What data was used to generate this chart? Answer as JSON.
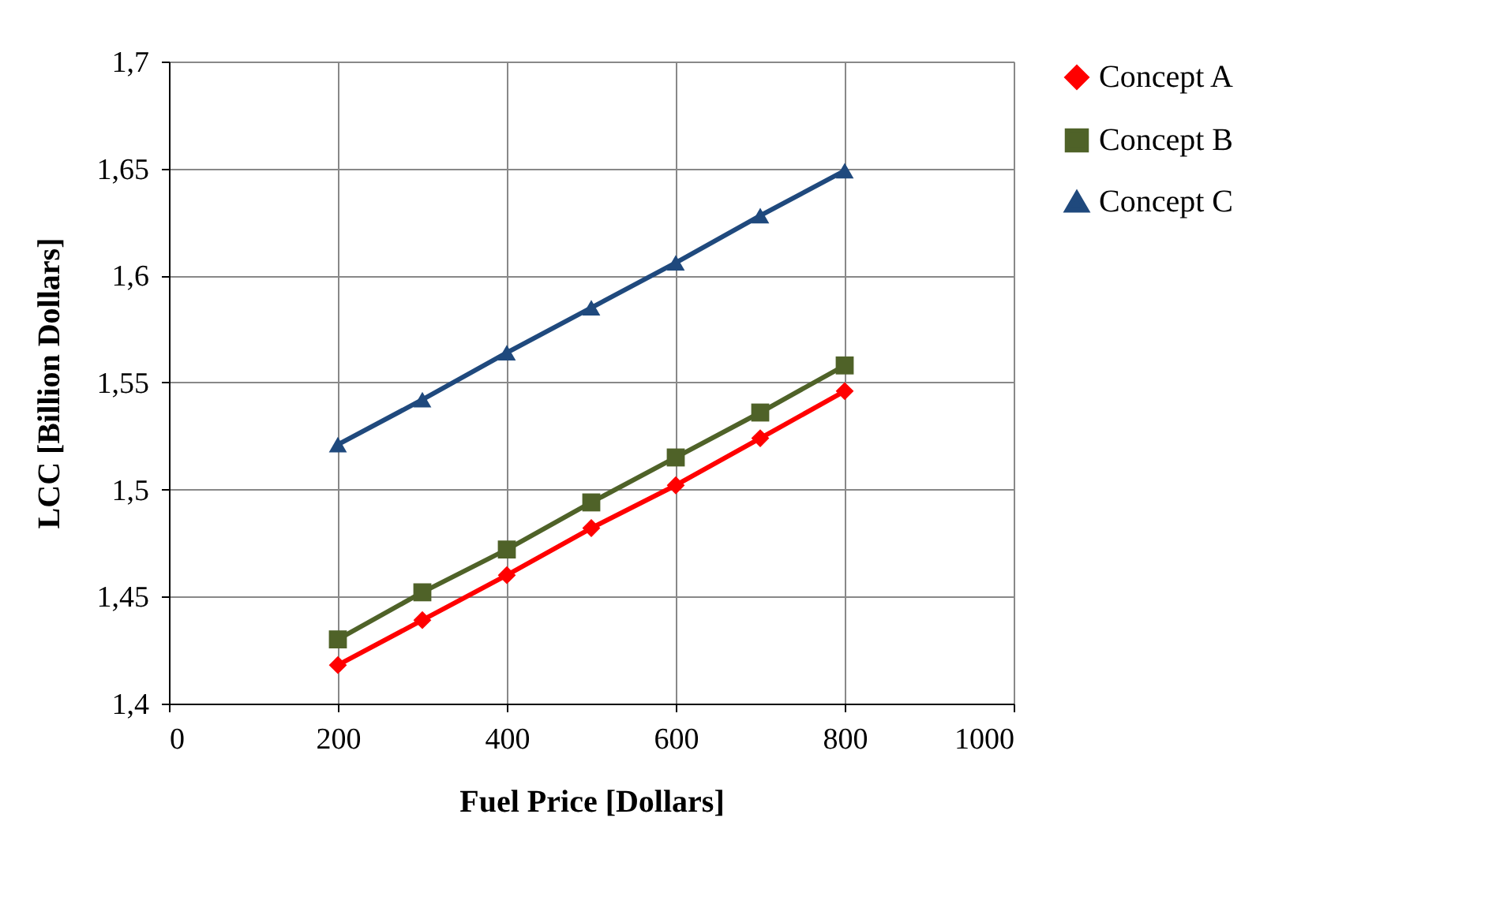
{
  "chart_data": {
    "type": "line",
    "xlabel": "Fuel Price [Dollars]",
    "ylabel": "LCC [Billion Dollars]",
    "x": [
      200,
      300,
      400,
      500,
      600,
      700,
      800
    ],
    "series": [
      {
        "name": "Concept A",
        "color": "#ff0000",
        "marker": "diamond",
        "values": [
          1.418,
          1.439,
          1.46,
          1.482,
          1.502,
          1.524,
          1.546
        ]
      },
      {
        "name": "Concept B",
        "color": "#4f6228",
        "marker": "square",
        "values": [
          1.43,
          1.452,
          1.472,
          1.494,
          1.515,
          1.536,
          1.558
        ]
      },
      {
        "name": "Concept C",
        "color": "#1f497d",
        "marker": "triangle",
        "values": [
          1.521,
          1.542,
          1.564,
          1.585,
          1.606,
          1.628,
          1.649
        ]
      }
    ],
    "xlim": [
      0,
      1000
    ],
    "xticks": [
      0,
      200,
      400,
      600,
      800,
      1000
    ],
    "ylim": [
      1.4,
      1.7
    ],
    "yticks": [
      {
        "value": 1.4,
        "label": "1,4"
      },
      {
        "value": 1.45,
        "label": "1,45"
      },
      {
        "value": 1.5,
        "label": "1,5"
      },
      {
        "value": 1.55,
        "label": "1,55"
      },
      {
        "value": 1.6,
        "label": "1,6"
      },
      {
        "value": 1.65,
        "label": "1,65"
      },
      {
        "value": 1.7,
        "label": "1,7"
      }
    ],
    "grid": true,
    "legend": "right",
    "line_style": "solid"
  }
}
